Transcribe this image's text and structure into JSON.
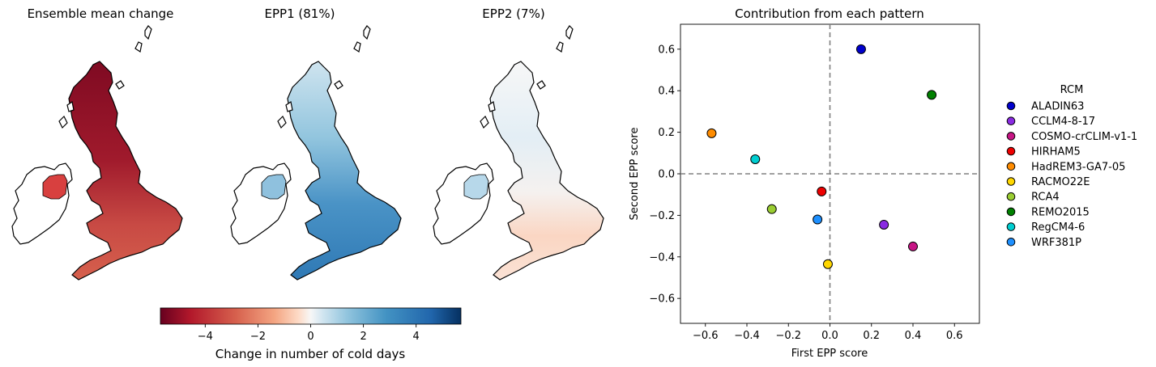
{
  "maps": [
    {
      "title": "Ensemble mean change"
    },
    {
      "title": "EPP1 (81%)"
    },
    {
      "title": "EPP2 (7%)"
    }
  ],
  "colorbar": {
    "label": "Change in number of cold days",
    "ticks": [
      -4,
      -2,
      0,
      2,
      4
    ],
    "tick_labels": [
      "−4",
      "−2",
      "0",
      "2",
      "4"
    ],
    "range": [
      -5.7,
      5.7
    ],
    "colormap": "RdBu"
  },
  "colors": {
    "dark_red": "#8b0c25",
    "mid_red": "#d6604d",
    "light_red": "#f7d5c4",
    "white": "#f7f7f7",
    "light_blue": "#cfe4ef",
    "mid_blue": "#4c95c4",
    "dark_blue": "#08306b",
    "zero_line": "#808080"
  },
  "chart_data": {
    "type": "scatter",
    "title": "Contribution from each pattern",
    "xlabel": "First EPP score",
    "ylabel": "Second EPP score",
    "xlim": [
      -0.72,
      0.72
    ],
    "ylim": [
      -0.72,
      0.72
    ],
    "xticks": [
      -0.6,
      -0.4,
      -0.2,
      0.0,
      0.2,
      0.4,
      0.6
    ],
    "xtick_labels": [
      "−0.6",
      "−0.4",
      "−0.2",
      "0.0",
      "0.2",
      "0.4",
      "0.6"
    ],
    "yticks": [
      -0.6,
      -0.4,
      -0.2,
      0.0,
      0.2,
      0.4,
      0.6
    ],
    "ytick_labels": [
      "−0.6",
      "−0.4",
      "−0.2",
      "0.0",
      "0.2",
      "0.4",
      "0.6"
    ],
    "grid": false,
    "reference_lines": {
      "x": 0.0,
      "y": 0.0,
      "style": "dashed"
    },
    "legend": {
      "title": "RCM",
      "placement": "outside-right"
    },
    "series": [
      {
        "name": "ALADIN63",
        "x": 0.15,
        "y": 0.6,
        "color": "#0000cd"
      },
      {
        "name": "CCLM4-8-17",
        "x": 0.26,
        "y": -0.245,
        "color": "#8a2be2"
      },
      {
        "name": "COSMO-crCLIM-v1-1",
        "x": 0.4,
        "y": -0.35,
        "color": "#c71585"
      },
      {
        "name": "HIRHAM5",
        "x": -0.04,
        "y": -0.085,
        "color": "#ee0000"
      },
      {
        "name": "HadREM3-GA7-05",
        "x": -0.57,
        "y": 0.195,
        "color": "#ff8c00"
      },
      {
        "name": "RACMO22E",
        "x": -0.01,
        "y": -0.435,
        "color": "#ffd700"
      },
      {
        "name": "RCA4",
        "x": -0.28,
        "y": -0.17,
        "color": "#9acd32"
      },
      {
        "name": "REMO2015",
        "x": 0.49,
        "y": 0.38,
        "color": "#008000"
      },
      {
        "name": "RegCM4-6",
        "x": -0.36,
        "y": 0.07,
        "color": "#00ced1"
      },
      {
        "name": "WRF381P",
        "x": -0.06,
        "y": -0.22,
        "color": "#1e90ff"
      }
    ]
  }
}
